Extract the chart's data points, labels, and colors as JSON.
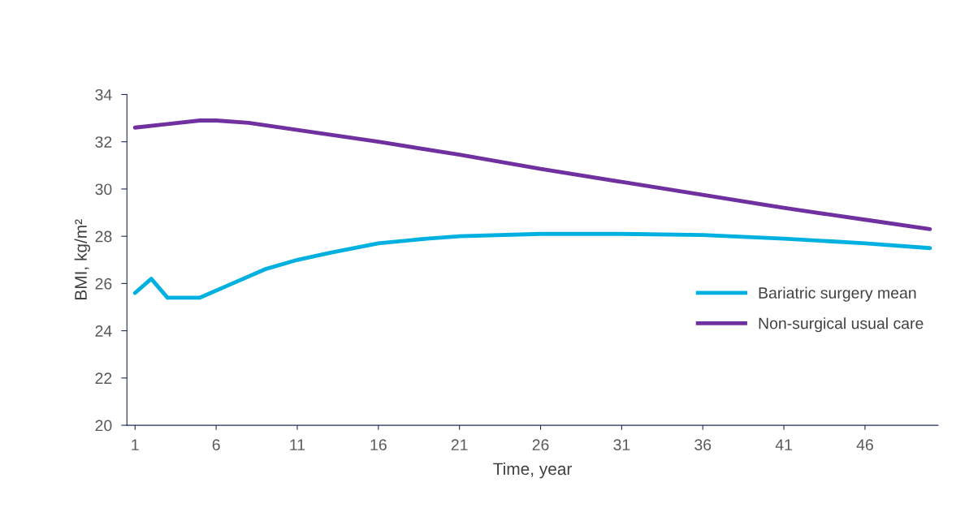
{
  "chart_data": {
    "type": "line",
    "xlabel": "Time, year",
    "ylabel": "BMI, kg/m²",
    "xlim": [
      0.5,
      50.5
    ],
    "xticks": [
      1,
      6,
      11,
      16,
      21,
      26,
      31,
      36,
      41,
      46
    ],
    "ylim": [
      20,
      34
    ],
    "yticks": [
      20,
      22,
      24,
      26,
      28,
      30,
      32,
      34
    ],
    "grid": false,
    "legend": "right",
    "marker": "none",
    "line_style": "solid",
    "series": [
      {
        "name": "Bariatric surgery mean",
        "color": "#00b0e0",
        "x": [
          1,
          2,
          3,
          4,
          5,
          7,
          9,
          11,
          13,
          16,
          19,
          21,
          26,
          28,
          31,
          36,
          41,
          46,
          50
        ],
        "values": [
          25.6,
          26.2,
          25.4,
          25.4,
          25.4,
          26.0,
          26.6,
          27.0,
          27.3,
          27.7,
          27.9,
          28.0,
          28.1,
          28.1,
          28.1,
          28.05,
          27.9,
          27.7,
          27.5
        ]
      },
      {
        "name": "Non-surgical usual care",
        "color": "#7030a0",
        "x": [
          1,
          3,
          5,
          6,
          8,
          11,
          16,
          21,
          26,
          31,
          36,
          41,
          46,
          50
        ],
        "values": [
          32.6,
          32.75,
          32.9,
          32.9,
          32.8,
          32.5,
          32.0,
          31.45,
          30.85,
          30.3,
          29.75,
          29.2,
          28.7,
          28.3
        ]
      }
    ]
  }
}
